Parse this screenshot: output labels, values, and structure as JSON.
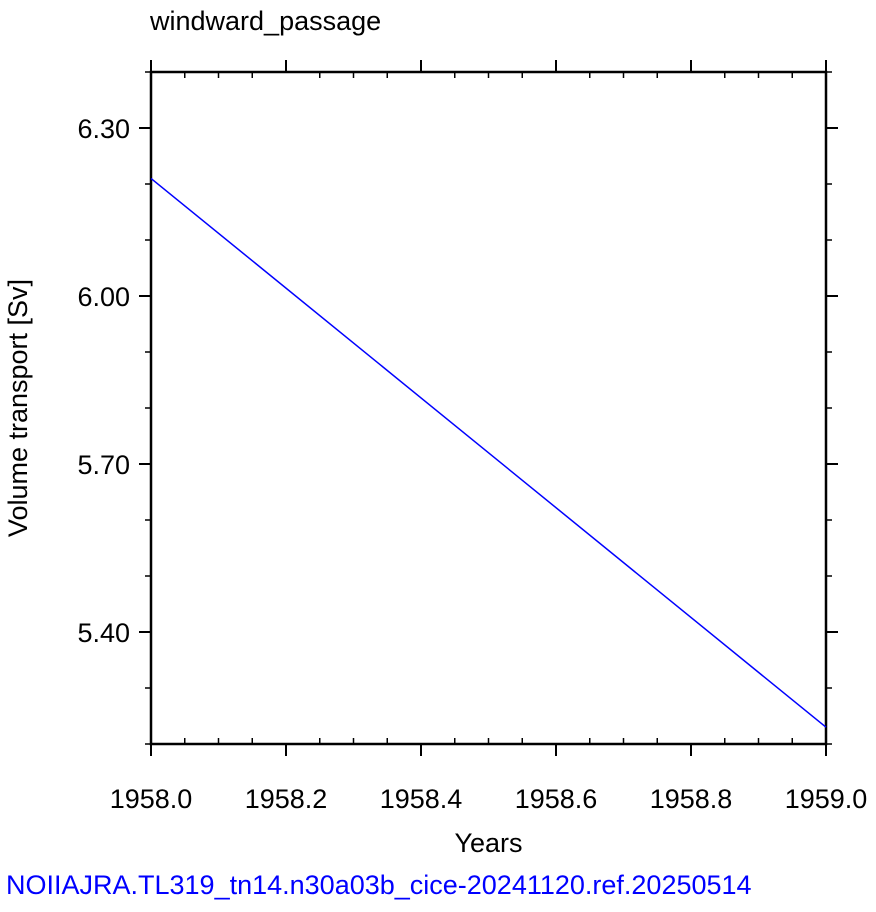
{
  "chart_data": {
    "type": "line",
    "title": "windward_passage",
    "xlabel": "Years",
    "ylabel": "Volume transport [Sv]",
    "xlim": [
      1958.0,
      1959.0
    ],
    "ylim": [
      5.2,
      6.4
    ],
    "x_ticks": [
      "1958.0",
      "1958.2",
      "1958.4",
      "1958.6",
      "1958.8",
      "1959.0"
    ],
    "x_tick_values": [
      1958.0,
      1958.2,
      1958.4,
      1958.6,
      1958.8,
      1959.0
    ],
    "y_ticks": [
      "5.40",
      "5.70",
      "6.00",
      "6.30"
    ],
    "y_tick_values": [
      5.4,
      5.7,
      6.0,
      6.3
    ],
    "x_minor_step": 0.05,
    "y_minor_step": 0.1,
    "grid": false,
    "series": [
      {
        "x": [
          1958.0,
          1959.0
        ],
        "y": [
          6.21,
          5.23
        ],
        "color": "#0000ff"
      }
    ]
  },
  "caption": {
    "text": "NOIIAJRA.TL319_tn14.n30a03b_cice-20241120.ref.20250514",
    "color": "#0000ff"
  }
}
